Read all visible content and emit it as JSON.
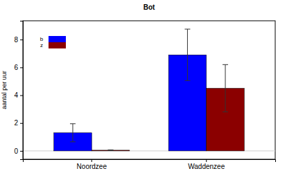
{
  "chart_data": {
    "type": "bar",
    "title": "Bot",
    "y_label": "aantal per uur",
    "categories": [
      "Noordzee",
      "Waddenzee"
    ],
    "series": [
      {
        "name": "b",
        "color": "#0000ff",
        "values": [
          1.3,
          6.9
        ],
        "errors": [
          0.65,
          1.85
        ]
      },
      {
        "name": "z",
        "color": "#8b0000",
        "values": [
          0.05,
          4.5
        ],
        "errors": [
          0.02,
          1.7
        ]
      }
    ],
    "ylim": [
      -0.6,
      9.35
    ],
    "yticks": [
      0,
      2,
      4,
      6,
      8
    ],
    "legend": "top-left"
  }
}
